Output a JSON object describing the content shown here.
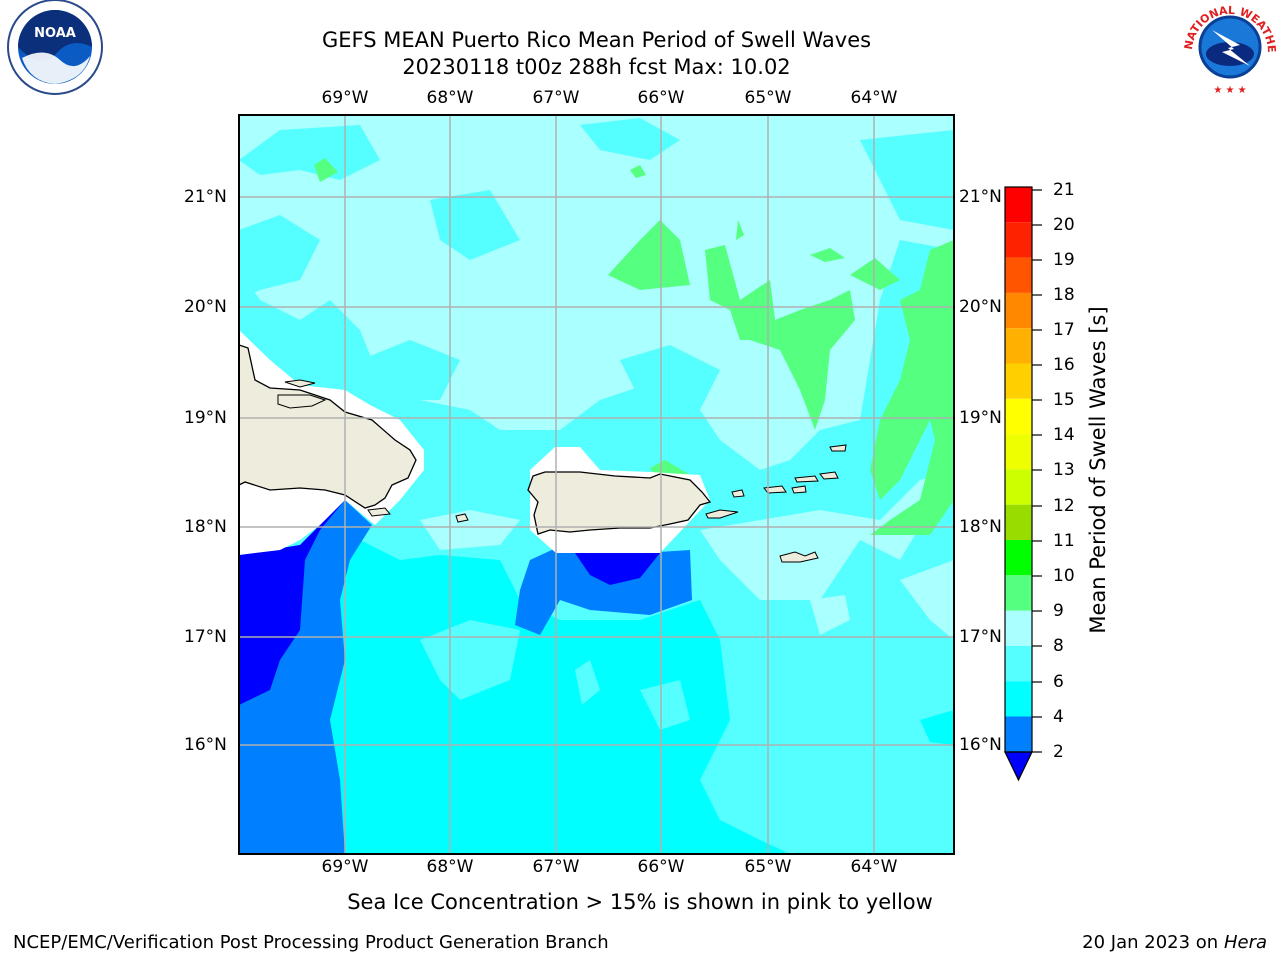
{
  "header": {
    "title_line1": "GEFS MEAN Puerto Rico Mean Period of Swell Waves",
    "title_line2": "20230118 t00z 288h fcst   Max: 10.02"
  },
  "logos": {
    "left": "noaa-logo",
    "right": "nws-logo",
    "right_text": "NATIONAL WEATHER SERVICE"
  },
  "map": {
    "lon_labels": [
      "69°W",
      "68°W",
      "67°W",
      "66°W",
      "65°W",
      "64°W"
    ],
    "lat_labels": [
      "21°N",
      "20°N",
      "19°N",
      "18°N",
      "17°N",
      "16°N"
    ],
    "lon_range": [
      -70.0,
      -63.25
    ],
    "lat_range": [
      15.0,
      21.75
    ],
    "grid": true,
    "colors": {
      "land": "#eeecdc",
      "coast": "#000000",
      "grid": "#b0b0b0"
    }
  },
  "colorbar": {
    "label": "Mean Period of Swell Waves [s]",
    "ticks": [
      "21",
      "20",
      "19",
      "18",
      "17",
      "16",
      "15",
      "14",
      "13",
      "12",
      "11",
      "10",
      "9",
      "8",
      "6",
      "4",
      "2"
    ],
    "levels": [
      2,
      4,
      6,
      8,
      9,
      10,
      11,
      12,
      13,
      14,
      15,
      16,
      17,
      18,
      19,
      20,
      21
    ],
    "colors": [
      "#0000ff",
      "#0080ff",
      "#00ffff",
      "#55ffff",
      "#aaffff",
      "#55ff7f",
      "#00ff00",
      "#55dd22",
      "#99dd00",
      "#ccff00",
      "#eeff00",
      "#ffff00",
      "#ffd000",
      "#ffb000",
      "#ff8800",
      "#ff5500",
      "#ff2200",
      "#ff0000"
    ],
    "extend": "min"
  },
  "footer": {
    "caption": "Sea Ice Concentration > 15% is shown in pink to yellow",
    "credit_left": "NCEP/EMC/Verification Post Processing Product Generation Branch",
    "date": "20 Jan 2023 on ",
    "machine": "Hera"
  }
}
